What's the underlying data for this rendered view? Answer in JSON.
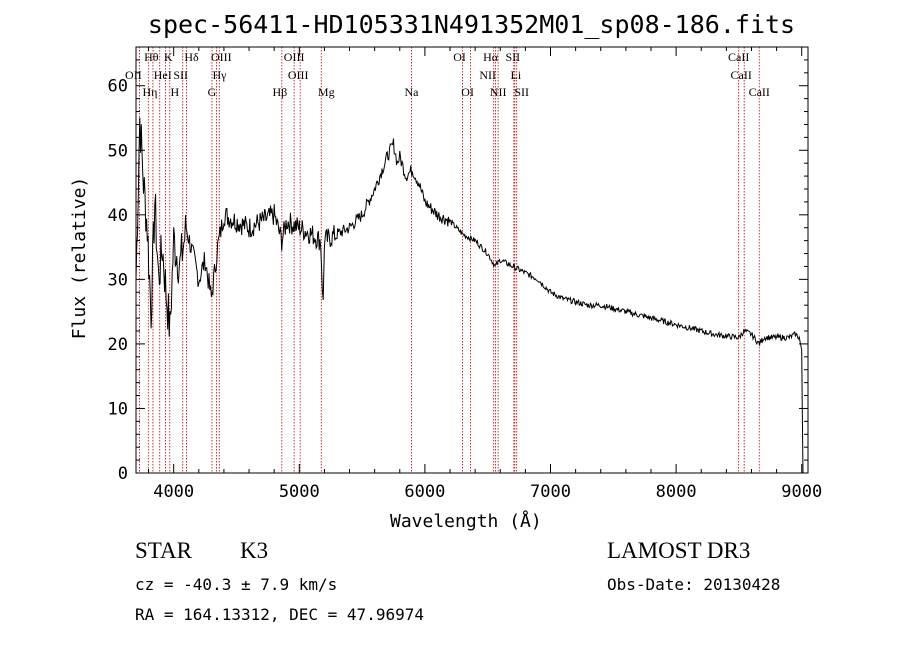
{
  "chart_data": {
    "type": "line",
    "title": "spec-56411-HD105331N491352M01_sp08-186.fits",
    "xlabel": "Wavelength (Å)",
    "ylabel": "Flux (relative)",
    "xlim": [
      3700,
      9050
    ],
    "ylim": [
      0,
      66
    ],
    "xticks": [
      4000,
      5000,
      6000,
      7000,
      8000,
      9000
    ],
    "yticks": [
      0,
      10,
      20,
      30,
      40,
      50,
      60
    ],
    "xticks_labels": [
      "4000",
      "5000",
      "6000",
      "7000",
      "8000",
      "9000"
    ],
    "yticks_labels": [
      "0",
      "10",
      "20",
      "30",
      "40",
      "50",
      "60"
    ],
    "series": [
      {
        "name": "flux",
        "x": [
          3700,
          3730,
          3760,
          3790,
          3820,
          3850,
          3880,
          3910,
          3940,
          3970,
          4000,
          4050,
          4100,
          4150,
          4200,
          4250,
          4300,
          4350,
          4400,
          4500,
          4600,
          4700,
          4800,
          4860,
          4900,
          5000,
          5100,
          5170,
          5190,
          5200,
          5300,
          5400,
          5500,
          5600,
          5700,
          5750,
          5780,
          5800,
          5850,
          5900,
          5950,
          6000,
          6100,
          6200,
          6300,
          6400,
          6500,
          6560,
          6600,
          6700,
          6800,
          6900,
          7000,
          7100,
          7200,
          7300,
          7400,
          7500,
          7600,
          7700,
          7800,
          7900,
          8000,
          8100,
          8200,
          8300,
          8400,
          8500,
          8540,
          8600,
          8660,
          8700,
          8800,
          8900,
          8950,
          8980,
          9000,
          9010
        ],
        "values": [
          30,
          55,
          45,
          38,
          25,
          42,
          30,
          35,
          28,
          22,
          36,
          32,
          38,
          34,
          30,
          33,
          27,
          35,
          40,
          39,
          38,
          39,
          40,
          36,
          39,
          38,
          37,
          36,
          26,
          36,
          37,
          38,
          40,
          44,
          49,
          51,
          48,
          49,
          46,
          47,
          45,
          42,
          40,
          39,
          37,
          36,
          34,
          32,
          33,
          32,
          31,
          30,
          28,
          27,
          26.5,
          26,
          26,
          25.5,
          25,
          24.5,
          24,
          23.5,
          23,
          22.5,
          22,
          21.5,
          21.2,
          21,
          22,
          21.5,
          20,
          21,
          21,
          21,
          21.5,
          21,
          19,
          0
        ]
      }
    ],
    "lines": [
      {
        "name": "OII",
        "wl": 3727
      },
      {
        "name": "Hθ",
        "wl": 3798
      },
      {
        "name": "Hη",
        "wl": 3835
      },
      {
        "name": "HeI",
        "wl": 3889
      },
      {
        "name": "K",
        "wl": 3934
      },
      {
        "name": "H",
        "wl": 3969
      },
      {
        "name": "SII",
        "wl": 4072
      },
      {
        "name": "Hδ",
        "wl": 4102
      },
      {
        "name": "G",
        "wl": 4305
      },
      {
        "name": "Hγ",
        "wl": 4341
      },
      {
        "name": "OIII",
        "wl": 4363
      },
      {
        "name": "Hβ",
        "wl": 4861
      },
      {
        "name": "OIII",
        "wl": 4959
      },
      {
        "name": "OIII",
        "wl": 5007
      },
      {
        "name": "Mg",
        "wl": 5175
      },
      {
        "name": "Na",
        "wl": 5893
      },
      {
        "name": "OI",
        "wl": 6300
      },
      {
        "name": "OI",
        "wl": 6364
      },
      {
        "name": "NII",
        "wl": 6548
      },
      {
        "name": "Hα",
        "wl": 6563
      },
      {
        "name": "NII",
        "wl": 6583
      },
      {
        "name": "Li",
        "wl": 6708
      },
      {
        "name": "SII",
        "wl": 6716
      },
      {
        "name": "SII",
        "wl": 6731
      },
      {
        "name": "CaII",
        "wl": 8498
      },
      {
        "name": "CaII",
        "wl": 8542
      },
      {
        "name": "CaII",
        "wl": 8662
      }
    ],
    "line_color": "#c00000",
    "spectrum_color": "#000000"
  },
  "info": {
    "object_class": "STAR",
    "subclass": "K3",
    "redshift": "cz = -40.3 ± 7.9 km/s",
    "coords": "RA = 164.13312, DEC =  47.96974",
    "survey": "LAMOST DR3",
    "obs_date": "Obs-Date: 20130428"
  }
}
